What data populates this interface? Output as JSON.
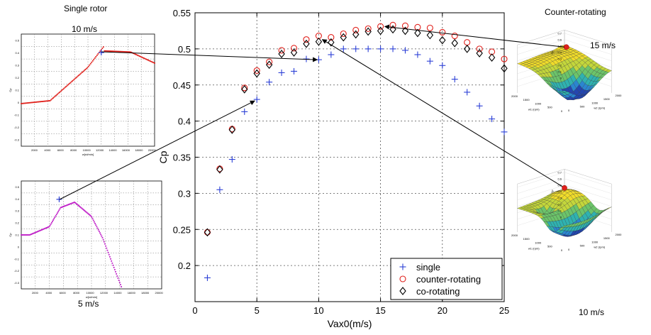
{
  "captions": {
    "left_title": "Single rotor",
    "right_title": "Counter-rotating",
    "inset_top_left": "10 m/s",
    "inset_bottom_left": "5 m/s",
    "inset_top_right": "15 m/s",
    "inset_bottom_right": "10 m/s"
  },
  "insets": {
    "single_10": {
      "xticks": [
        "2000",
        "4000",
        "6000",
        "8000",
        "10000",
        "12000",
        "14000",
        "16000",
        "18000",
        "20000"
      ],
      "yticks": [
        "0.5",
        "0.4",
        "0.3",
        "0.2",
        "0.1",
        "0",
        "-0.1",
        "-0.2",
        "-0.3"
      ],
      "xlabel": "w[rd/min]",
      "ylabel": "Cp",
      "color": "#e0201b"
    },
    "single_5": {
      "xticks": [
        "2000",
        "4000",
        "6000",
        "8000",
        "10000",
        "12000",
        "14000",
        "16000",
        "18000",
        "20000"
      ],
      "yticks": [
        "0.5",
        "0.4",
        "0.3",
        "0.2",
        "0.1",
        "0",
        "-0.1",
        "-0.2",
        "-0.3"
      ],
      "xlabel": "w[rd/min]",
      "ylabel": "Cp",
      "color": "#c020c8"
    },
    "counter_15": {
      "zticks": [
        "0.7",
        "0.6",
        "0.5",
        "0.4",
        "0.3",
        "0.2",
        "0.1",
        "0"
      ],
      "w1ticks": [
        "2000",
        "1500",
        "1000",
        "500",
        "0"
      ],
      "w2ticks": [
        "0",
        "500",
        "1000",
        "1500",
        "2000"
      ],
      "w1label": "w1 (rpm)",
      "w2label": "w2 (rpm)",
      "zlabel": "Cp"
    },
    "counter_10": {
      "zticks": [
        "0.7",
        "0.6",
        "0.5",
        "0.4",
        "0.3",
        "0.2",
        "0.1",
        "0"
      ],
      "w1ticks": [
        "2000",
        "1500",
        "1000",
        "500",
        "0"
      ],
      "w2ticks": [
        "0",
        "500",
        "1000",
        "1500",
        "2000"
      ],
      "w1label": "w1 (rpm)",
      "w2label": "w2 (rpm)",
      "zlabel": "Cp"
    }
  },
  "chart_data": {
    "type": "scatter",
    "title": "",
    "xlabel": "Vax0(m/s)",
    "ylabel": "Cp",
    "xlim": [
      0,
      25
    ],
    "ylim": [
      0.15,
      0.55
    ],
    "xticks": [
      "0",
      "5",
      "10",
      "15",
      "20",
      "25"
    ],
    "yticks": [
      "0.2",
      "0.25",
      "0.3",
      "0.35",
      "0.4",
      "0.45",
      "0.5",
      "0.55"
    ],
    "grid": true,
    "legend_position": "bottom-right",
    "series": [
      {
        "name": "single",
        "marker": "plus",
        "color": "#2b3fd6",
        "x": [
          1,
          2,
          3,
          4,
          5,
          6,
          7,
          8,
          9,
          10,
          11,
          12,
          13,
          14,
          15,
          16,
          17,
          18,
          19,
          20,
          21,
          22,
          23,
          24,
          25
        ],
        "y": [
          0.183,
          0.305,
          0.347,
          0.413,
          0.43,
          0.454,
          0.467,
          0.469,
          0.486,
          0.485,
          0.492,
          0.5,
          0.5,
          0.5,
          0.5,
          0.5,
          0.498,
          0.492,
          0.483,
          0.477,
          0.458,
          0.44,
          0.421,
          0.403,
          0.385
        ]
      },
      {
        "name": "counter-rotating",
        "marker": "circle",
        "color": "#e0201b",
        "x": [
          1,
          2,
          3,
          4,
          5,
          6,
          7,
          8,
          9,
          10,
          11,
          12,
          13,
          14,
          15,
          16,
          17,
          18,
          19,
          20,
          21,
          22,
          23,
          24,
          25
        ],
        "y": [
          0.246,
          0.334,
          0.389,
          0.446,
          0.47,
          0.482,
          0.498,
          0.501,
          0.513,
          0.518,
          0.516,
          0.521,
          0.526,
          0.528,
          0.531,
          0.533,
          0.532,
          0.53,
          0.529,
          0.523,
          0.518,
          0.509,
          0.5,
          0.496,
          0.486
        ]
      },
      {
        "name": "co-rotating",
        "marker": "diamond",
        "color": "#000000",
        "x": [
          1,
          2,
          3,
          4,
          5,
          6,
          7,
          8,
          9,
          10,
          11,
          12,
          13,
          14,
          15,
          16,
          17,
          18,
          19,
          20,
          21,
          22,
          23,
          24,
          25
        ],
        "y": [
          0.246,
          0.333,
          0.388,
          0.444,
          0.466,
          0.478,
          0.493,
          0.495,
          0.507,
          0.51,
          0.509,
          0.516,
          0.52,
          0.524,
          0.525,
          0.527,
          0.525,
          0.522,
          0.519,
          0.512,
          0.508,
          0.5,
          0.494,
          0.488,
          0.473
        ]
      }
    ]
  }
}
